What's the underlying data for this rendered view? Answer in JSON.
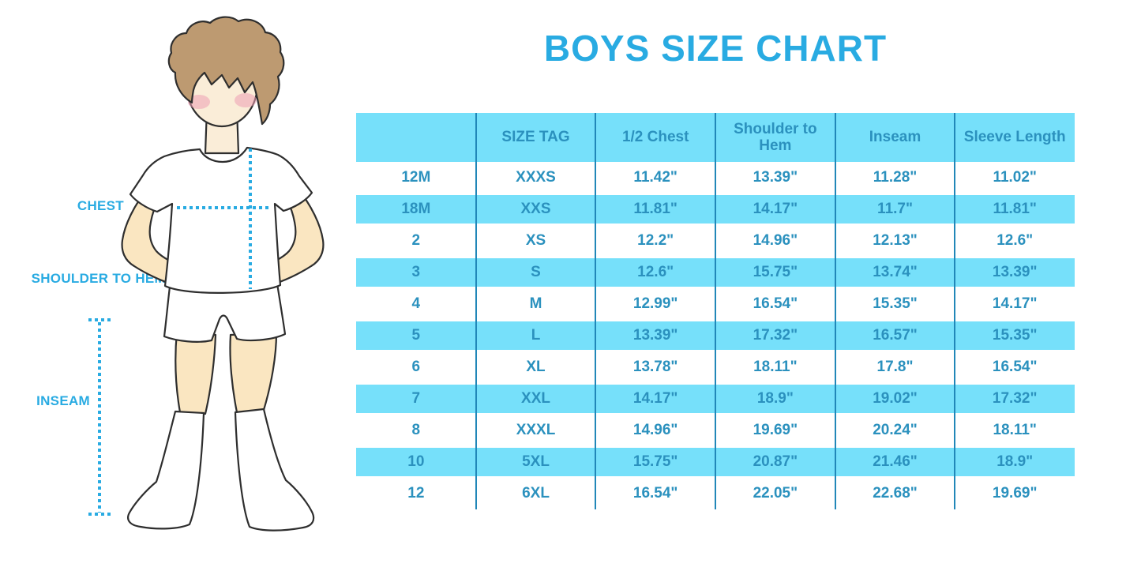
{
  "title": "BOYS SIZE CHART",
  "figure": {
    "labels": {
      "chest": "CHEST",
      "shoulder_to_hem": "SHOULDER TO HEM",
      "inseam": "INSEAM"
    }
  },
  "colors": {
    "accent_blue": "#29ABE2",
    "stripe_blue": "#76E0FA",
    "table_text_blue": "#2B91BE",
    "grid_line_blue": "#2187B8",
    "hair_brown": "#BD9A71",
    "skin": "#FAE6C1",
    "face_skin": "#FAEDD8",
    "blush_pink": "#EF9FB4"
  },
  "chart_data": {
    "type": "table",
    "title": "BOYS SIZE CHART",
    "columns": [
      "",
      "SIZE TAG",
      "1/2 Chest",
      "Shoulder to Hem",
      "Inseam",
      "Sleeve Length"
    ],
    "rows": [
      [
        "12M",
        "XXXS",
        "11.42\"",
        "13.39\"",
        "11.28\"",
        "11.02\""
      ],
      [
        "18M",
        "XXS",
        "11.81\"",
        "14.17\"",
        "11.7\"",
        "11.81\""
      ],
      [
        "2",
        "XS",
        "12.2\"",
        "14.96\"",
        "12.13\"",
        "12.6\""
      ],
      [
        "3",
        "S",
        "12.6\"",
        "15.75\"",
        "13.74\"",
        "13.39\""
      ],
      [
        "4",
        "M",
        "12.99\"",
        "16.54\"",
        "15.35\"",
        "14.17\""
      ],
      [
        "5",
        "L",
        "13.39\"",
        "17.32\"",
        "16.57\"",
        "15.35\""
      ],
      [
        "6",
        "XL",
        "13.78\"",
        "18.11\"",
        "17.8\"",
        "16.54\""
      ],
      [
        "7",
        "XXL",
        "14.17\"",
        "18.9\"",
        "19.02\"",
        "17.32\""
      ],
      [
        "8",
        "XXXL",
        "14.96\"",
        "19.69\"",
        "20.24\"",
        "18.11\""
      ],
      [
        "10",
        "5XL",
        "15.75\"",
        "20.87\"",
        "21.46\"",
        "18.9\""
      ],
      [
        "12",
        "6XL",
        "16.54\"",
        "22.05\"",
        "22.68\"",
        "19.69\""
      ]
    ],
    "layout": {
      "header_fill": "light-blue",
      "row_striping": "alternate light-blue starting at 2nd data row",
      "grid": "vertical column separators only, no outer border",
      "legend_position": "none"
    }
  }
}
